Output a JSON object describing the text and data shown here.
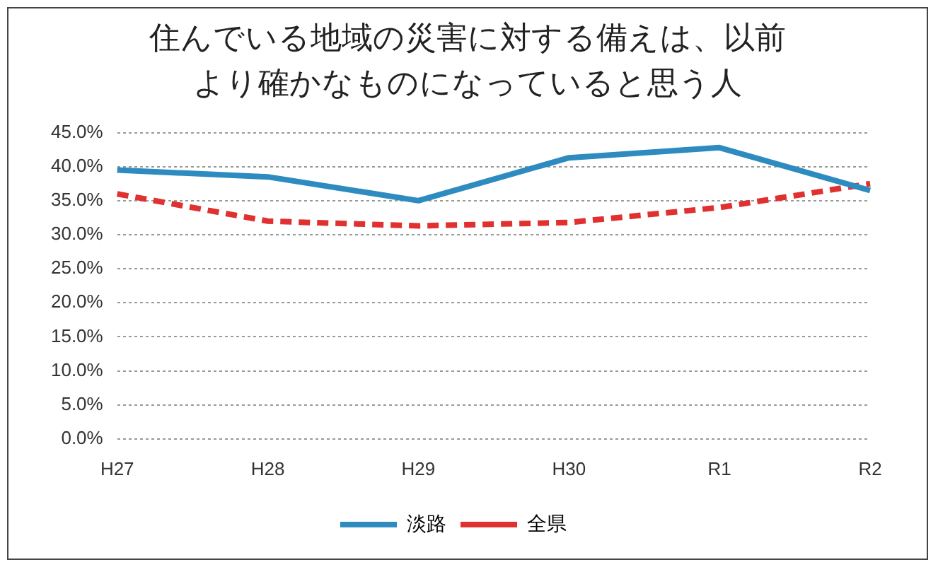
{
  "chart_data": {
    "type": "line",
    "title": "住んでいる地域の災害に対する備えは、以前より確かなものになっていると思う人",
    "categories": [
      "H27",
      "H28",
      "H29",
      "H30",
      "R1",
      "R2"
    ],
    "series": [
      {
        "name": "淡路",
        "color": "#2e8bc0",
        "values": [
          39.5,
          38.5,
          35.0,
          41.3,
          42.8,
          36.5
        ],
        "line_style": "solid"
      },
      {
        "name": "全県",
        "color": "#e03030",
        "values": [
          36.0,
          32.0,
          31.3,
          31.8,
          34.0,
          37.5
        ],
        "line_style": "dashed"
      }
    ],
    "ylim": [
      0,
      45
    ],
    "yticks": [
      {
        "value": 0,
        "label": "0.0%"
      },
      {
        "value": 5,
        "label": "5.0%"
      },
      {
        "value": 10,
        "label": "10.0%"
      },
      {
        "value": 15,
        "label": "15.0%"
      },
      {
        "value": 20,
        "label": "20.0%"
      },
      {
        "value": 25,
        "label": "25.0%"
      },
      {
        "value": 30,
        "label": "30.0%"
      },
      {
        "value": 35,
        "label": "35.0%"
      },
      {
        "value": 40,
        "label": "40.0%"
      },
      {
        "value": 45,
        "label": "45.0%"
      }
    ],
    "grid": "y",
    "legend": "bottom",
    "marker": "none"
  }
}
